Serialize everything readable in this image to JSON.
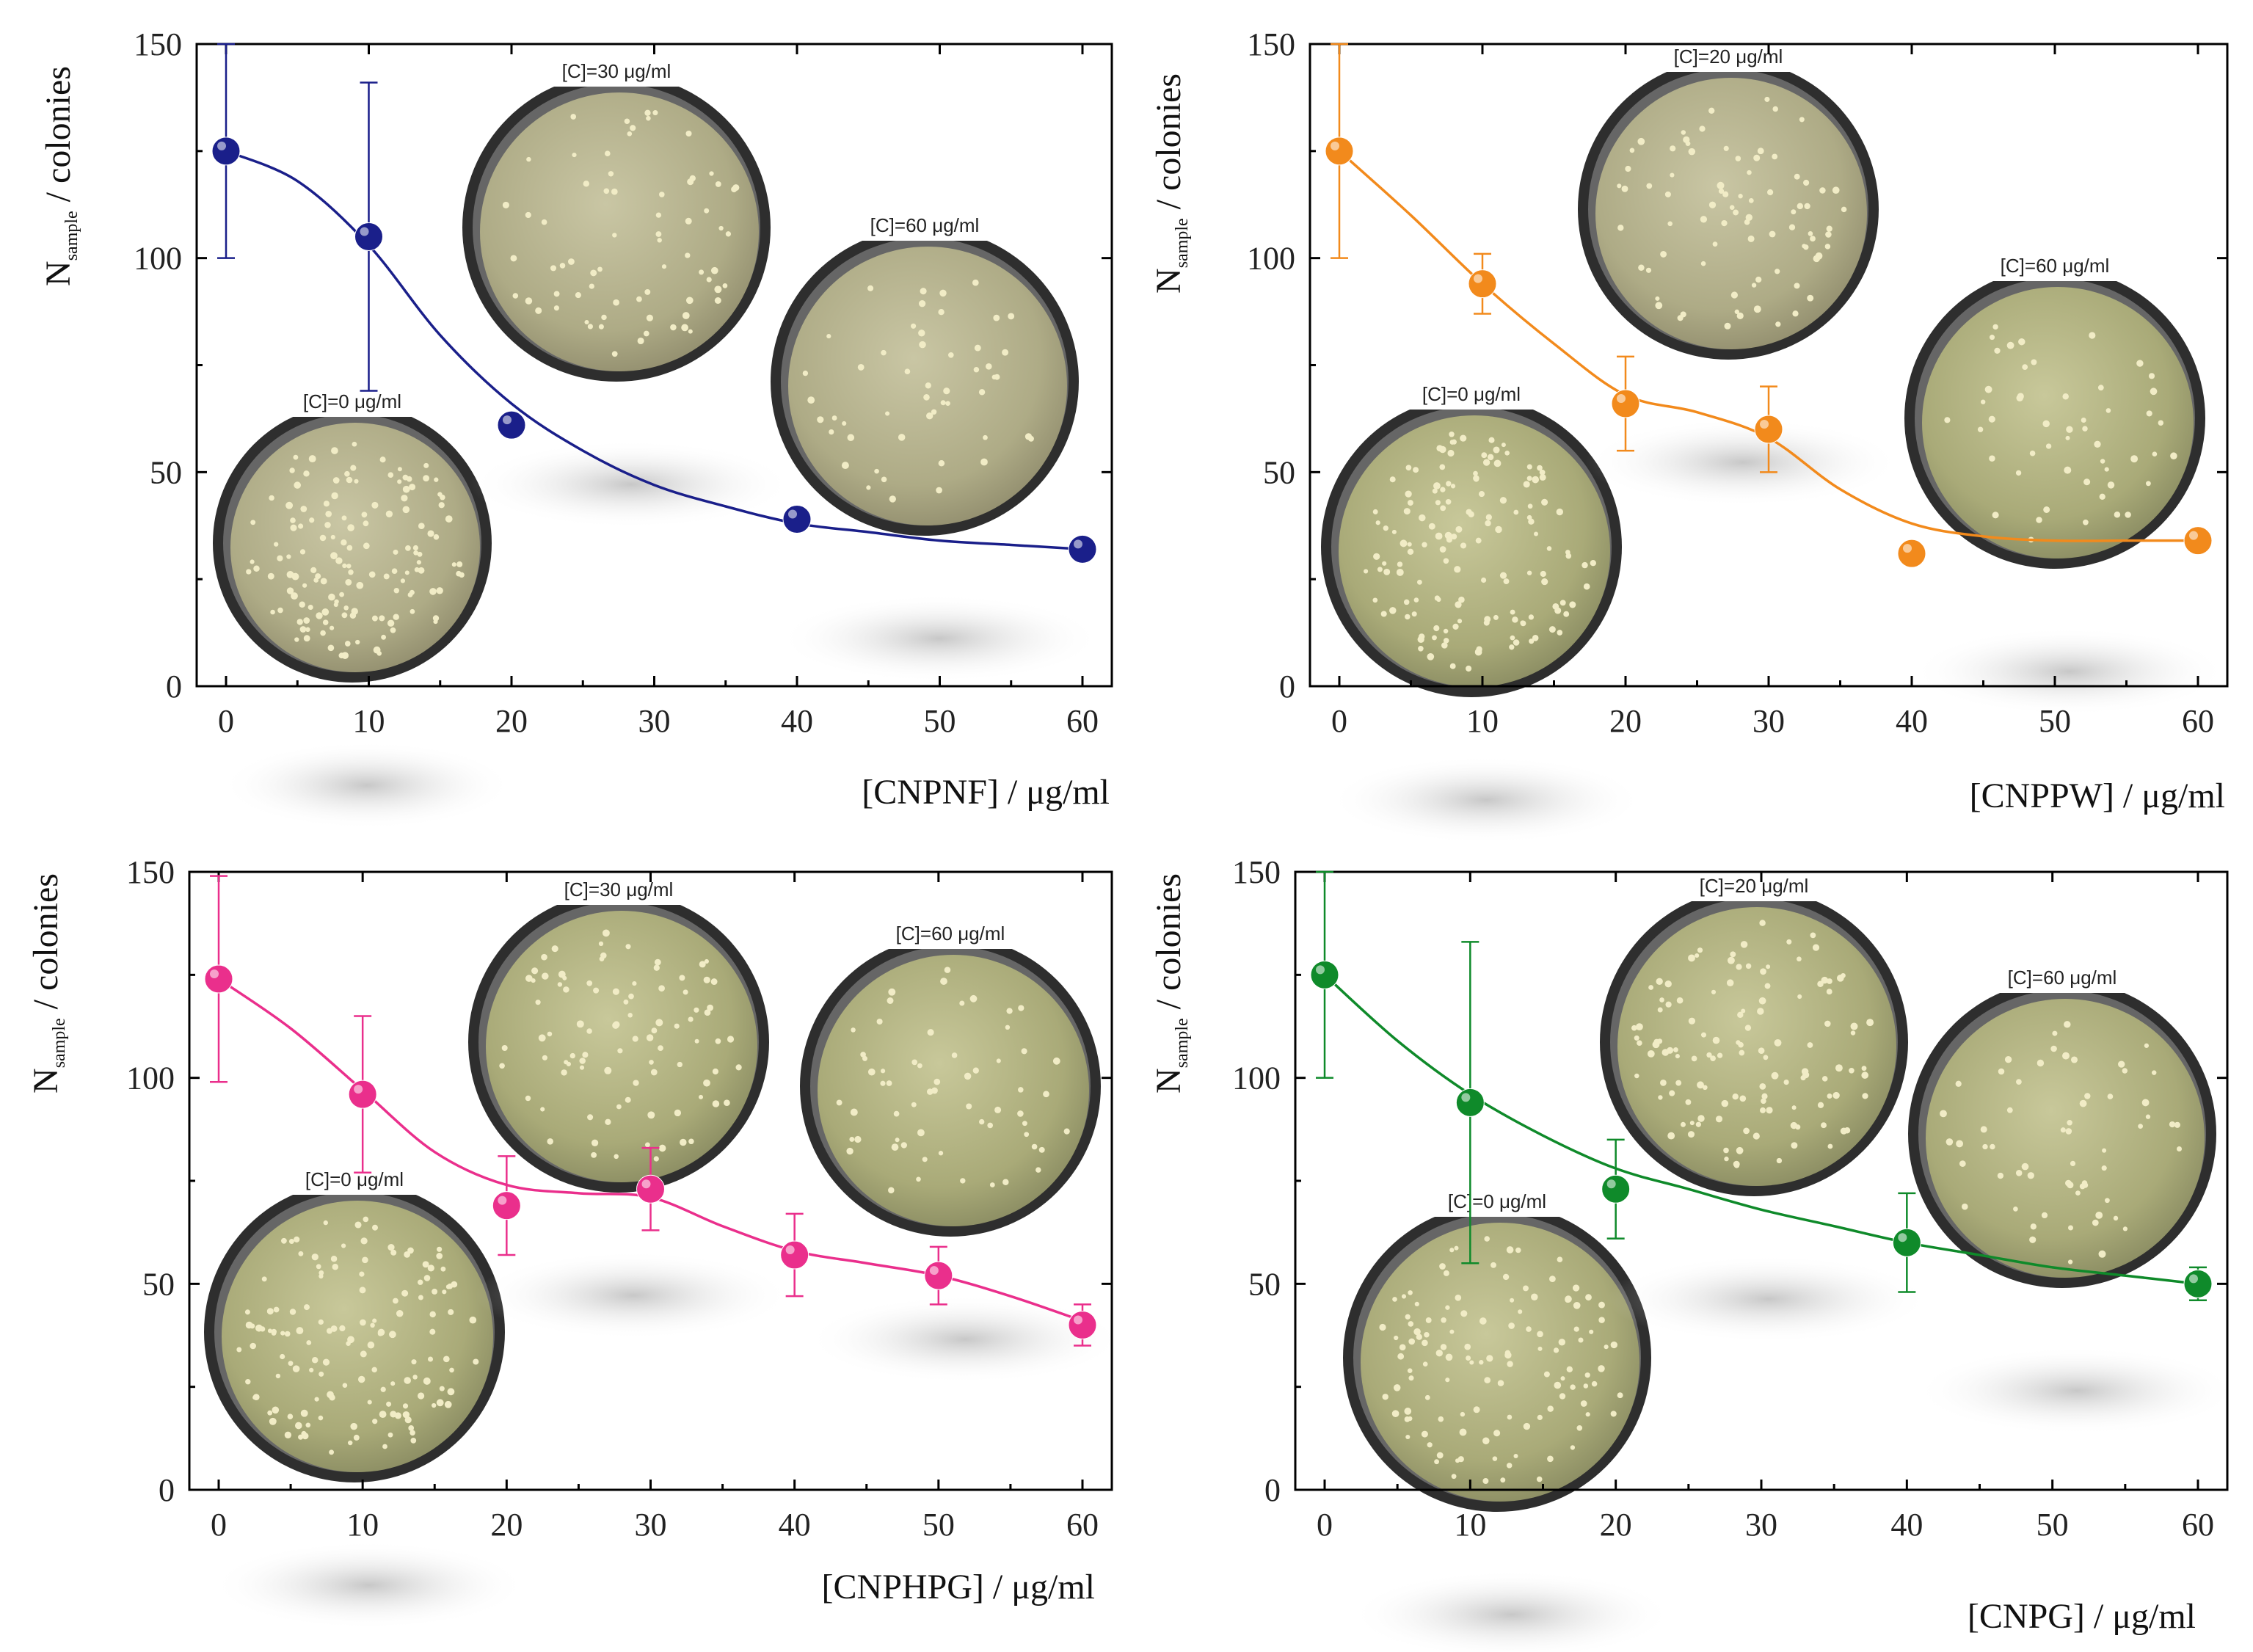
{
  "chart_data": [
    {
      "type": "scatter",
      "name": "CNPNF",
      "color": "#1a1f8a",
      "xlabel": "[CNPNF] / μg/ml",
      "ylabel_main": "N",
      "ylabel_sub": "sample",
      "ylabel_rest": " / colonies",
      "xlim": [
        0,
        60
      ],
      "ylim": [
        0,
        150
      ],
      "xticks": [
        0,
        10,
        20,
        30,
        40,
        50,
        60
      ],
      "yticks": [
        0,
        50,
        100,
        150
      ],
      "x": [
        0,
        10,
        20,
        40,
        60
      ],
      "y": [
        125,
        105,
        61,
        39,
        32
      ],
      "err": [
        25,
        36,
        0,
        0,
        0
      ],
      "fit": [
        [
          0,
          125
        ],
        [
          5,
          118
        ],
        [
          10,
          103
        ],
        [
          15,
          82
        ],
        [
          20,
          66
        ],
        [
          25,
          55
        ],
        [
          30,
          47
        ],
        [
          35,
          42
        ],
        [
          40,
          38
        ],
        [
          45,
          36
        ],
        [
          50,
          34
        ],
        [
          55,
          33
        ],
        [
          60,
          32
        ]
      ],
      "plates": [
        {
          "label": "[C]=0 μg/ml"
        },
        {
          "label": "[C]=30 μg/ml"
        },
        {
          "label": "[C]=60 μg/ml"
        }
      ]
    },
    {
      "type": "scatter",
      "name": "CNPPW",
      "color": "#f28a1c",
      "xlabel": "[CNPPW] / μg/ml",
      "ylabel_main": "N",
      "ylabel_sub": "sample",
      "ylabel_rest": " / colonies",
      "xlim": [
        0,
        60
      ],
      "ylim": [
        0,
        150
      ],
      "xticks": [
        0,
        10,
        20,
        30,
        40,
        50,
        60
      ],
      "yticks": [
        0,
        50,
        100,
        150
      ],
      "x": [
        0,
        10,
        20,
        30,
        40,
        60
      ],
      "y": [
        125,
        94,
        66,
        60,
        31,
        34
      ],
      "err": [
        25,
        7,
        11,
        10,
        0,
        0
      ],
      "fit": [
        [
          0,
          125
        ],
        [
          5,
          110
        ],
        [
          10,
          94
        ],
        [
          15,
          80
        ],
        [
          20,
          68
        ],
        [
          25,
          64
        ],
        [
          30,
          58
        ],
        [
          35,
          46
        ],
        [
          40,
          38
        ],
        [
          45,
          35
        ],
        [
          50,
          34
        ],
        [
          55,
          34
        ],
        [
          60,
          34
        ]
      ],
      "plates": [
        {
          "label": "[C]=0 μg/ml"
        },
        {
          "label": "[C]=20 μg/ml"
        },
        {
          "label": "[C]=60 μg/ml"
        }
      ]
    },
    {
      "type": "scatter",
      "name": "CNPHPG",
      "color": "#ea2f8c",
      "xlabel": "[CNPHPG] / μg/ml",
      "ylabel_main": "N",
      "ylabel_sub": "sample",
      "ylabel_rest": " / colonies",
      "xlim": [
        0,
        60
      ],
      "ylim": [
        0,
        150
      ],
      "xticks": [
        0,
        10,
        20,
        30,
        40,
        50,
        60
      ],
      "yticks": [
        0,
        50,
        100,
        150
      ],
      "x": [
        0,
        10,
        20,
        30,
        40,
        50,
        60
      ],
      "y": [
        124,
        96,
        69,
        73,
        57,
        52,
        40
      ],
      "err": [
        25,
        19,
        12,
        10,
        10,
        7,
        5
      ],
      "fit": [
        [
          0,
          124
        ],
        [
          5,
          112
        ],
        [
          10,
          97
        ],
        [
          15,
          82
        ],
        [
          20,
          74
        ],
        [
          25,
          72
        ],
        [
          30,
          71
        ],
        [
          35,
          64
        ],
        [
          40,
          58
        ],
        [
          45,
          55
        ],
        [
          50,
          52
        ],
        [
          55,
          47
        ],
        [
          60,
          41
        ]
      ],
      "plates": [
        {
          "label": "[C]=0 μg/ml"
        },
        {
          "label": "[C]=30 μg/ml"
        },
        {
          "label": "[C]=60 μg/ml"
        }
      ]
    },
    {
      "type": "scatter",
      "name": "CNPG",
      "color": "#0f8a2a",
      "xlabel": "[CNPG] / μg/ml",
      "ylabel_main": "N",
      "ylabel_sub": "sample",
      "ylabel_rest": " / colonies",
      "xlim": [
        0,
        60
      ],
      "ylim": [
        0,
        150
      ],
      "xticks": [
        0,
        10,
        20,
        30,
        40,
        50,
        60
      ],
      "yticks": [
        0,
        50,
        100,
        150
      ],
      "x": [
        0,
        10,
        20,
        40,
        60
      ],
      "y": [
        125,
        94,
        73,
        60,
        50
      ],
      "err": [
        25,
        39,
        12,
        12,
        4
      ],
      "fit": [
        [
          0,
          125
        ],
        [
          5,
          109
        ],
        [
          10,
          96
        ],
        [
          15,
          86
        ],
        [
          20,
          78
        ],
        [
          25,
          73
        ],
        [
          30,
          68
        ],
        [
          35,
          64
        ],
        [
          40,
          60
        ],
        [
          45,
          57
        ],
        [
          50,
          54
        ],
        [
          55,
          52
        ],
        [
          60,
          50
        ]
      ],
      "plates": [
        {
          "label": "[C]=0 μg/ml"
        },
        {
          "label": "[C]=20 μg/ml"
        },
        {
          "label": "[C]=60 μg/ml"
        }
      ]
    }
  ]
}
